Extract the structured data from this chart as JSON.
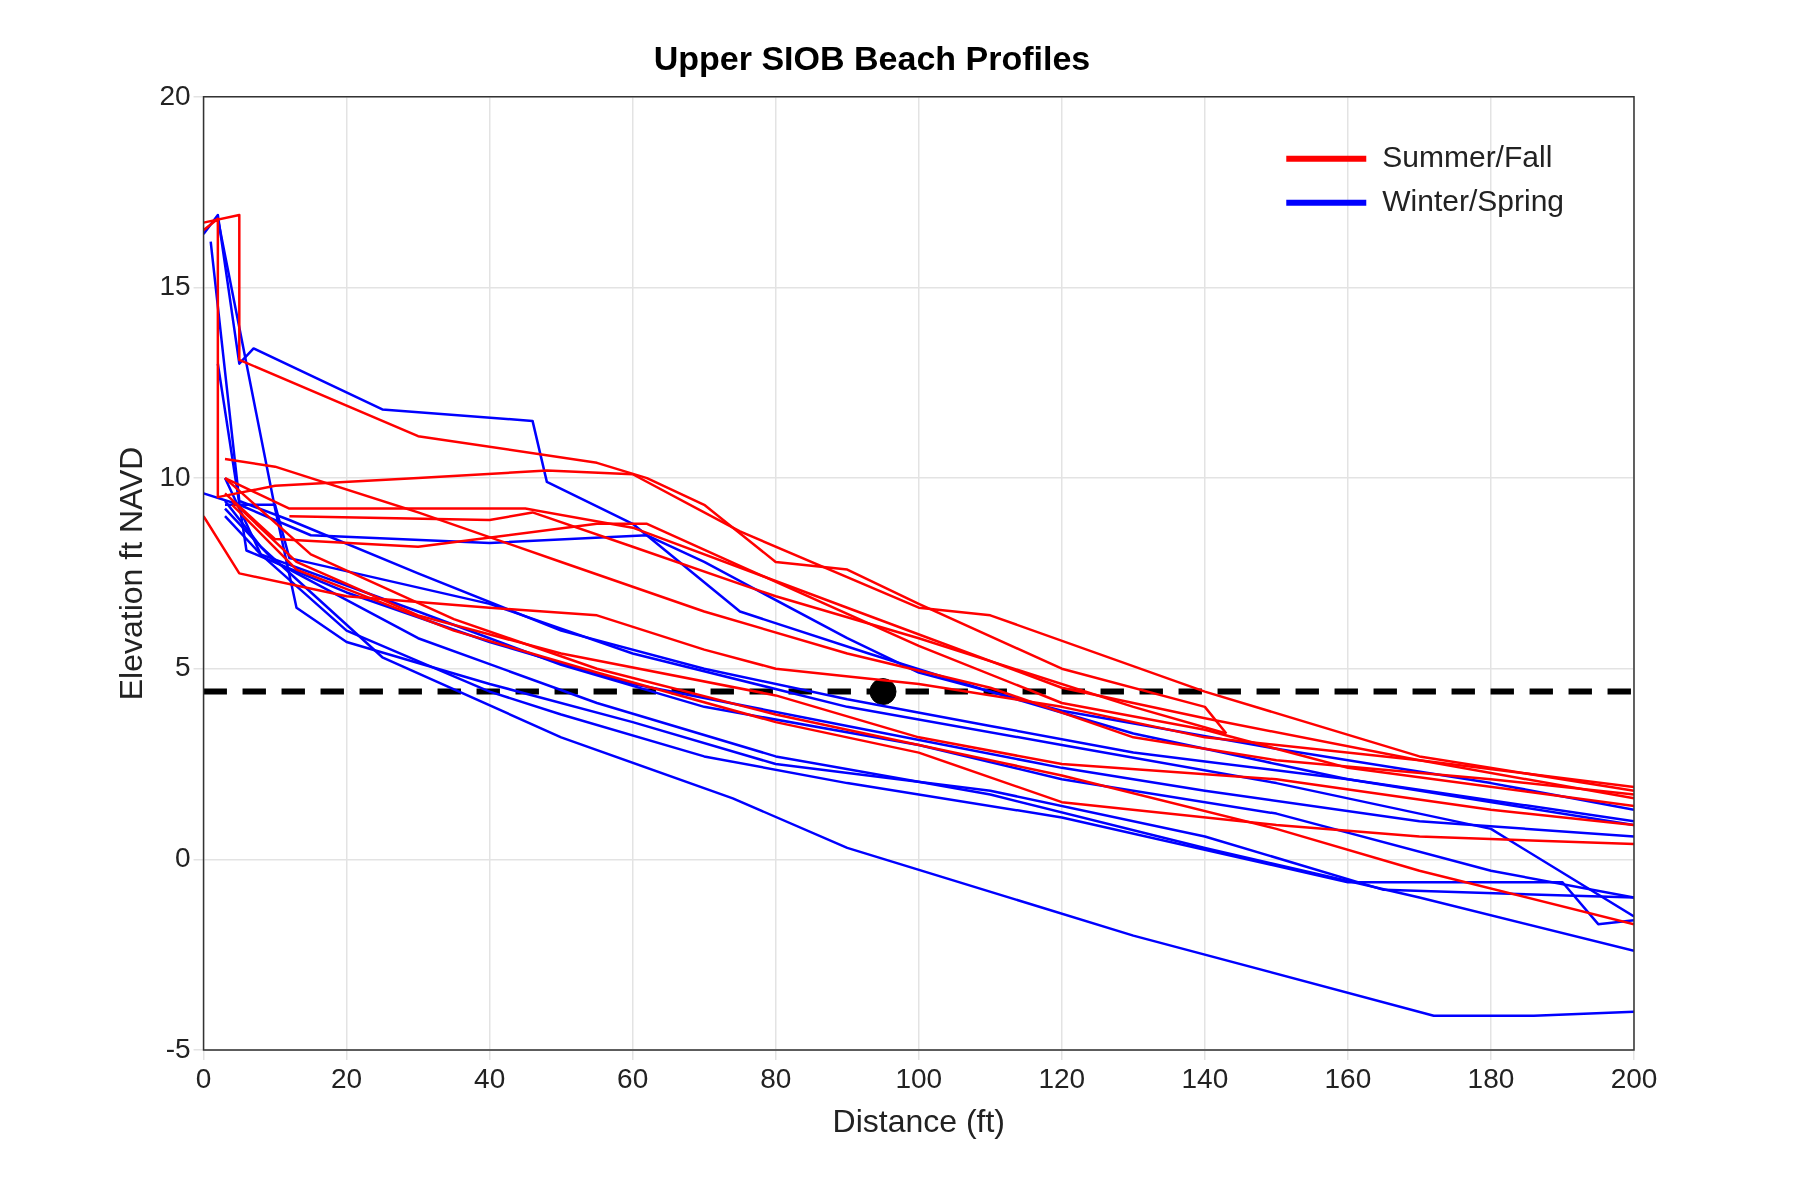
{
  "chart_data": {
    "type": "line",
    "title": "Upper SIOB Beach Profiles",
    "xlabel": "Distance (ft)",
    "ylabel": "Elevation ft NAVD",
    "xlim": [
      0,
      200
    ],
    "xticks": [
      0,
      20,
      40,
      60,
      80,
      100,
      120,
      140,
      160,
      180,
      200
    ],
    "ylim": [
      -5,
      20
    ],
    "yticks": [
      -5,
      0,
      5,
      10,
      15,
      20
    ],
    "grid": true,
    "legend": "top right",
    "line_style": "solid",
    "ref_lines": [
      {
        "axis": "y",
        "value": 4.4,
        "color": "#000000",
        "line_style": "dashed"
      }
    ],
    "series": [
      {
        "name": "Summer/Fall",
        "color": "#ff0000",
        "x": [
          0,
          5,
          5,
          30,
          55,
          62,
          70,
          80,
          90,
          100,
          120,
          140,
          143
        ],
        "values": [
          16.7,
          16.9,
          13.1,
          11.1,
          10.4,
          10.0,
          9.3,
          7.8,
          7.6,
          6.7,
          5.0,
          4.0,
          3.3
        ]
      },
      {
        "color": "#ff0000",
        "x": [
          0,
          2,
          2,
          10,
          30,
          48,
          60,
          75,
          100,
          110,
          140,
          170,
          200
        ],
        "values": [
          16.5,
          16.8,
          9.5,
          9.8,
          10.0,
          10.2,
          10.1,
          8.6,
          6.6,
          6.4,
          4.4,
          2.7,
          1.8
        ]
      },
      {
        "color": "#ff0000",
        "x": [
          0,
          5,
          20,
          40,
          55,
          70,
          80,
          100,
          120,
          140,
          170,
          200
        ],
        "values": [
          9.0,
          7.5,
          6.9,
          6.6,
          6.4,
          5.5,
          5.0,
          4.6,
          4.0,
          3.2,
          2.6,
          1.9
        ]
      },
      {
        "color": "#ff0000",
        "x": [
          3,
          10,
          30,
          50,
          70,
          90,
          110,
          130,
          150,
          180,
          200
        ],
        "values": [
          10.5,
          10.3,
          9.1,
          7.8,
          6.5,
          5.4,
          4.5,
          3.2,
          2.6,
          2.1,
          1.7
        ]
      },
      {
        "color": "#ff0000",
        "x": [
          3,
          12,
          20,
          45,
          60,
          90,
          120,
          140,
          170,
          200
        ],
        "values": [
          10.0,
          9.2,
          9.2,
          9.2,
          8.7,
          6.6,
          4.5,
          3.7,
          2.6,
          1.6
        ]
      },
      {
        "color": "#ff0000",
        "x": [
          3,
          10,
          30,
          55,
          62,
          75,
          100,
          120,
          140,
          160,
          200
        ],
        "values": [
          9.6,
          8.4,
          8.2,
          8.8,
          8.8,
          7.7,
          5.6,
          4.1,
          3.4,
          2.4,
          1.4
        ]
      },
      {
        "color": "#ff0000",
        "x": [
          4,
          13,
          30,
          50,
          80,
          100,
          120,
          150,
          180,
          200
        ],
        "values": [
          9.4,
          7.8,
          6.4,
          5.4,
          4.3,
          3.2,
          2.5,
          2.1,
          1.3,
          0.9
        ]
      },
      {
        "color": "#ff0000",
        "x": [
          4,
          13,
          35,
          55,
          80,
          100,
          120,
          150,
          170,
          200
        ],
        "values": [
          9.3,
          7.6,
          6.0,
          4.9,
          3.6,
          2.8,
          1.5,
          0.9,
          0.6,
          0.4
        ]
      },
      {
        "color": "#ff0000",
        "x": [
          3,
          15,
          35,
          55,
          80,
          120,
          150,
          170,
          200
        ],
        "values": [
          10.0,
          8.0,
          6.3,
          5.0,
          3.8,
          2.2,
          0.8,
          -0.3,
          -1.7
        ]
      },
      {
        "color": "#ff0000",
        "x": [
          12,
          40,
          46,
          60,
          80,
          100,
          130,
          143
        ],
        "values": [
          9.0,
          8.9,
          9.1,
          8.2,
          6.9,
          5.8,
          4.0,
          3.3
        ]
      },
      {
        "name": "Winter/Spring",
        "color": "#0000ff",
        "x": [
          0,
          2,
          5,
          7,
          25,
          46,
          48,
          60,
          75,
          93,
          110,
          130,
          160,
          200
        ],
        "values": [
          16.4,
          16.9,
          13.0,
          13.4,
          11.8,
          11.5,
          9.9,
          8.8,
          6.5,
          5.4,
          4.4,
          3.3,
          2.1,
          0.9
        ]
      },
      {
        "color": "#0000ff",
        "x": [
          0,
          5,
          15,
          40,
          62,
          70,
          90,
          100,
          120,
          150,
          180,
          200
        ],
        "values": [
          9.6,
          9.3,
          8.5,
          8.3,
          8.5,
          7.8,
          5.8,
          4.9,
          3.9,
          2.9,
          2.0,
          1.3
        ]
      },
      {
        "color": "#0000ff",
        "x": [
          1,
          5,
          12,
          30,
          50,
          70,
          90,
          110,
          130,
          160,
          200
        ],
        "values": [
          16.2,
          9.4,
          8.9,
          7.5,
          6.0,
          5.0,
          4.2,
          3.5,
          2.8,
          2.1,
          1.0
        ]
      },
      {
        "color": "#0000ff",
        "x": [
          3,
          10,
          12,
          40,
          60,
          90,
          120,
          150,
          180,
          200
        ],
        "values": [
          9.3,
          9.3,
          7.9,
          6.7,
          5.4,
          4.0,
          3.0,
          2.0,
          0.8,
          -1.5
        ]
      },
      {
        "color": "#0000ff",
        "x": [
          2,
          6,
          20,
          40,
          60,
          90,
          120,
          140,
          170,
          200
        ],
        "values": [
          13.0,
          8.1,
          7.0,
          5.7,
          4.6,
          3.5,
          2.4,
          1.8,
          1.0,
          0.6
        ]
      },
      {
        "color": "#0000ff",
        "x": [
          3,
          8,
          30,
          50,
          70,
          100,
          120,
          150,
          180,
          200
        ],
        "values": [
          9.0,
          8.0,
          6.5,
          5.1,
          4.0,
          3.0,
          2.1,
          1.2,
          -0.3,
          -1.0
        ]
      },
      {
        "color": "#0000ff",
        "x": [
          2,
          10,
          13,
          20,
          40,
          60,
          80,
          110,
          140,
          165,
          200
        ],
        "values": [
          16.8,
          9.2,
          6.6,
          5.7,
          4.6,
          3.6,
          2.5,
          1.8,
          0.6,
          -0.8,
          -1.0
        ]
      },
      {
        "color": "#0000ff",
        "x": [
          3,
          8,
          20,
          40,
          50,
          70,
          90,
          120,
          160,
          190,
          195,
          200
        ],
        "values": [
          10.0,
          8.0,
          6.0,
          4.4,
          3.8,
          2.7,
          2.0,
          1.1,
          -0.6,
          -0.6,
          -1.7,
          -1.6
        ]
      },
      {
        "color": "#0000ff",
        "x": [
          3,
          8,
          25,
          50,
          74,
          90,
          130,
          172,
          186,
          200
        ],
        "values": [
          9.4,
          8.2,
          5.3,
          3.2,
          1.6,
          0.3,
          -2.0,
          -4.1,
          -4.1,
          -4.0
        ]
      },
      {
        "color": "#0000ff",
        "x": [
          3,
          10,
          30,
          55,
          80,
          110,
          140,
          170,
          200
        ],
        "values": [
          9.2,
          7.8,
          5.8,
          4.1,
          2.7,
          1.7,
          0.3,
          -1.0,
          -2.4
        ]
      },
      {
        "type": "scatter",
        "color": "#000000",
        "marker": "circle",
        "x": [
          95
        ],
        "values": [
          4.4
        ]
      }
    ]
  }
}
